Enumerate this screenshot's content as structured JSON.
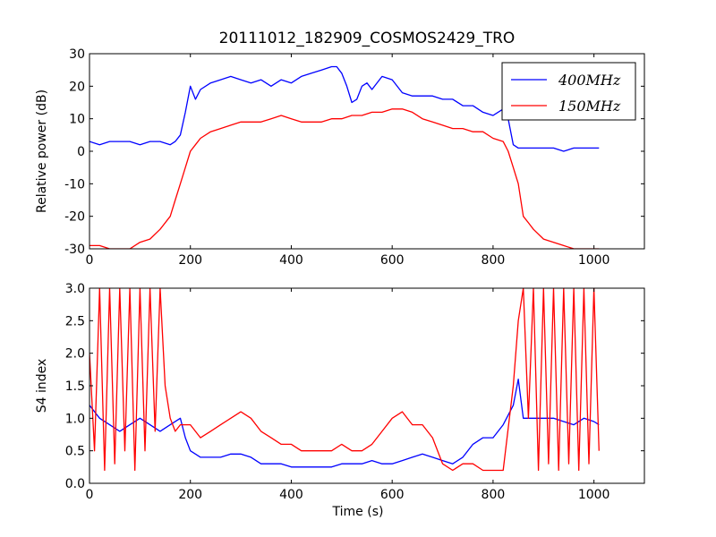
{
  "title": "20111012_182909_COSMOS2429_TRO",
  "colors": {
    "s400": "#0000ff",
    "s150": "#ff0000"
  },
  "chart_data": [
    {
      "type": "line",
      "xlabel": "",
      "ylabel": "Relative power (dB)",
      "xlim": [
        0,
        1100
      ],
      "ylim": [
        -30,
        30
      ],
      "xticks": [
        0,
        200,
        400,
        600,
        800,
        1000
      ],
      "yticks": [
        -30,
        -20,
        -10,
        0,
        10,
        20,
        30
      ],
      "legend": "top-right",
      "series": [
        {
          "name": "400MHz",
          "color": "#0000ff",
          "x": [
            0,
            20,
            40,
            60,
            80,
            100,
            120,
            140,
            160,
            170,
            180,
            190,
            200,
            210,
            220,
            240,
            260,
            280,
            300,
            320,
            340,
            360,
            380,
            400,
            420,
            440,
            460,
            480,
            490,
            500,
            510,
            520,
            530,
            540,
            550,
            560,
            580,
            600,
            620,
            640,
            660,
            680,
            700,
            720,
            740,
            760,
            780,
            800,
            820,
            830,
            840,
            850,
            860,
            880,
            900,
            920,
            940,
            960,
            980,
            1000,
            1010
          ],
          "y": [
            3,
            2,
            3,
            3,
            3,
            2,
            3,
            3,
            2,
            3,
            5,
            12,
            20,
            16,
            19,
            21,
            22,
            23,
            22,
            21,
            22,
            20,
            22,
            21,
            23,
            24,
            25,
            26,
            26,
            24,
            20,
            15,
            16,
            20,
            21,
            19,
            23,
            22,
            18,
            17,
            17,
            17,
            16,
            16,
            14,
            14,
            12,
            11,
            13,
            10,
            2,
            1,
            1,
            1,
            1,
            1,
            0,
            1,
            1,
            1,
            1
          ]
        },
        {
          "name": "150MHz",
          "color": "#ff0000",
          "x": [
            0,
            20,
            40,
            60,
            80,
            100,
            120,
            140,
            160,
            170,
            180,
            190,
            200,
            210,
            220,
            240,
            260,
            280,
            300,
            320,
            340,
            360,
            380,
            400,
            420,
            440,
            460,
            480,
            500,
            520,
            540,
            560,
            580,
            600,
            620,
            640,
            660,
            680,
            700,
            720,
            740,
            760,
            780,
            800,
            820,
            830,
            840,
            850,
            860,
            870,
            880,
            900,
            920,
            940,
            960,
            980,
            1000,
            1010
          ],
          "y": [
            -29,
            -29,
            -30,
            -30,
            -30,
            -28,
            -27,
            -24,
            -20,
            -15,
            -10,
            -5,
            0,
            2,
            4,
            6,
            7,
            8,
            9,
            9,
            9,
            10,
            11,
            10,
            9,
            9,
            9,
            10,
            10,
            11,
            11,
            12,
            12,
            13,
            13,
            12,
            10,
            9,
            8,
            7,
            7,
            6,
            6,
            4,
            3,
            0,
            -5,
            -10,
            -20,
            -22,
            -24,
            -27,
            -28,
            -29,
            -30,
            -30,
            -30,
            -30
          ]
        }
      ]
    },
    {
      "type": "line",
      "xlabel": "Time (s)",
      "ylabel": "S4 index",
      "xlim": [
        0,
        1100
      ],
      "ylim": [
        0,
        3
      ],
      "xticks": [
        0,
        200,
        400,
        600,
        800,
        1000
      ],
      "yticks": [
        0.0,
        0.5,
        1.0,
        1.5,
        2.0,
        2.5,
        3.0
      ],
      "series": [
        {
          "name": "400MHz",
          "color": "#0000ff",
          "x": [
            0,
            20,
            40,
            60,
            80,
            100,
            120,
            140,
            160,
            180,
            190,
            200,
            220,
            240,
            260,
            280,
            300,
            320,
            340,
            360,
            380,
            400,
            420,
            440,
            460,
            480,
            500,
            520,
            540,
            560,
            580,
            600,
            620,
            640,
            660,
            680,
            700,
            720,
            740,
            760,
            780,
            800,
            820,
            840,
            850,
            860,
            880,
            900,
            920,
            940,
            960,
            980,
            1000,
            1010
          ],
          "y": [
            1.2,
            1.0,
            0.9,
            0.8,
            0.9,
            1.0,
            0.9,
            0.8,
            0.9,
            1.0,
            0.7,
            0.5,
            0.4,
            0.4,
            0.4,
            0.45,
            0.45,
            0.4,
            0.3,
            0.3,
            0.3,
            0.25,
            0.25,
            0.25,
            0.25,
            0.25,
            0.3,
            0.3,
            0.3,
            0.35,
            0.3,
            0.3,
            0.35,
            0.4,
            0.45,
            0.4,
            0.35,
            0.3,
            0.4,
            0.6,
            0.7,
            0.7,
            0.9,
            1.2,
            1.6,
            1.0,
            1.0,
            1.0,
            1.0,
            0.95,
            0.9,
            1.0,
            0.95,
            0.9
          ]
        },
        {
          "name": "150MHz",
          "color": "#ff0000",
          "x": [
            0,
            10,
            20,
            30,
            40,
            50,
            60,
            70,
            80,
            90,
            100,
            110,
            120,
            130,
            140,
            150,
            160,
            170,
            180,
            200,
            220,
            240,
            260,
            280,
            300,
            320,
            340,
            360,
            380,
            400,
            420,
            440,
            460,
            480,
            500,
            520,
            540,
            560,
            580,
            600,
            620,
            640,
            660,
            680,
            700,
            720,
            740,
            760,
            780,
            800,
            820,
            840,
            850,
            860,
            870,
            880,
            890,
            900,
            910,
            920,
            930,
            940,
            950,
            960,
            970,
            980,
            990,
            1000,
            1010
          ],
          "y": [
            2.0,
            0.5,
            3.0,
            0.2,
            3.0,
            0.3,
            3.0,
            0.5,
            3.0,
            0.2,
            3.0,
            0.5,
            3.0,
            0.8,
            3.0,
            1.5,
            1.0,
            0.8,
            0.9,
            0.9,
            0.7,
            0.8,
            0.9,
            1.0,
            1.1,
            1.0,
            0.8,
            0.7,
            0.6,
            0.6,
            0.5,
            0.5,
            0.5,
            0.5,
            0.6,
            0.5,
            0.5,
            0.6,
            0.8,
            1.0,
            1.1,
            0.9,
            0.9,
            0.7,
            0.3,
            0.2,
            0.3,
            0.3,
            0.2,
            0.2,
            0.2,
            1.5,
            2.5,
            3.0,
            1.0,
            3.0,
            0.2,
            3.0,
            0.3,
            3.0,
            0.2,
            3.0,
            0.3,
            3.0,
            0.2,
            3.0,
            0.3,
            3.0,
            0.5
          ]
        }
      ]
    }
  ]
}
